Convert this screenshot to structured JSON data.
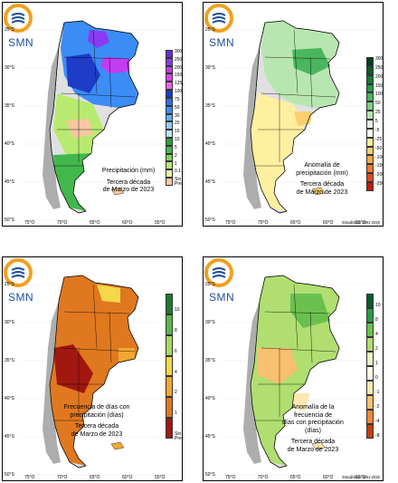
{
  "logo_text": "SMN",
  "lat_labels": [
    "25°S",
    "30°S",
    "35°S",
    "40°S",
    "45°S",
    "50°S",
    "55°S"
  ],
  "lon_labels": [
    "75°O",
    "70°O",
    "65°O",
    "60°O",
    "55°O"
  ],
  "panels": [
    {
      "caption1": "Precipitación (mm)",
      "caption2": "Tercera década",
      "caption3": "de Marzo de 2023",
      "stat": "",
      "legend": [
        "300",
        "250",
        "200",
        "150",
        "125",
        "100",
        "75",
        "50",
        "30",
        "20",
        "15",
        "10",
        "5",
        "2",
        "1",
        "0.1",
        "Sin Precip."
      ],
      "colors": [
        "#6a2bd9",
        "#8a3bf0",
        "#c23cf0",
        "#e040e8",
        "#f060f0",
        "#1e3cc8",
        "#2f6ef0",
        "#3c8cf5",
        "#5fb0f5",
        "#8fd0f5",
        "#b8e6f5",
        "#2b9e3c",
        "#42b84c",
        "#7fd45e",
        "#b8ea70",
        "#e8f5a0",
        "#f5c8a0"
      ]
    },
    {
      "caption1": "Anomalía de",
      "caption2": "precipitación (mm)",
      "caption3": "Tercera década",
      "caption4": "de Marzo de 2023",
      "stat": "Estadística 1991-2020",
      "legend": [
        "300",
        "250",
        "200",
        "150",
        "100",
        "50",
        "25",
        "5",
        "-5",
        "-25",
        "-50",
        "-100",
        "-150",
        "-200",
        "-250"
      ],
      "colors": [
        "#003c1e",
        "#0a5c2a",
        "#157a36",
        "#2a9a48",
        "#4ab65e",
        "#7fcf80",
        "#b8e6b0",
        "#e6f5e0",
        "#fffbe6",
        "#fff0a0",
        "#fcd070",
        "#f8a848",
        "#f07830",
        "#e04820",
        "#c01810"
      ]
    },
    {
      "caption1": "Frecuencia de días con",
      "caption2": "precipitación (días)",
      "caption3": "Tercera década",
      "caption4": "de Marzo de 2023",
      "stat": "",
      "legend": [
        "10",
        "8",
        "6",
        "4",
        "2",
        "1",
        "Sin Precip."
      ],
      "colors": [
        "#1e7a2e",
        "#5ab848",
        "#a8d860",
        "#f5d848",
        "#f0a830",
        "#e07820",
        "#a01810"
      ]
    },
    {
      "caption1": "Anomalía de la frecuencia de",
      "caption2": "días con precipitación (días)",
      "caption3": "Tercera década",
      "caption4": "de Marzo de 2023",
      "stat": "Estadística 1991-2020",
      "legend": [
        "10",
        "8",
        "4",
        "2",
        "1",
        "0",
        "-1",
        "-2",
        "-4",
        "-8"
      ],
      "colors": [
        "#0a5c2a",
        "#2a9a48",
        "#6ac04e",
        "#b0de70",
        "#e8f5c0",
        "#fffbe6",
        "#fde8b0",
        "#f8c070",
        "#f08838",
        "#c04010"
      ]
    }
  ]
}
